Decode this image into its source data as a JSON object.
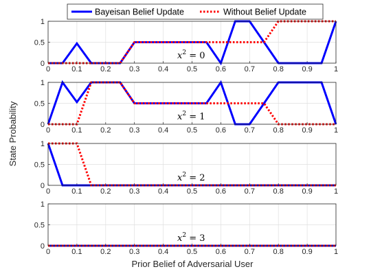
{
  "chart_data": [
    {
      "type": "line",
      "annotation": {
        "var": "x",
        "sup": "2",
        "rest": " = 0"
      },
      "xlim": [
        0,
        1
      ],
      "ylim": [
        0,
        1
      ],
      "xticks": [
        "0",
        "0.1",
        "0.2",
        "0.3",
        "0.4",
        "0.5",
        "0.6",
        "0.7",
        "0.8",
        "0.9",
        "1"
      ],
      "yticks": [
        "0",
        "0.5",
        "1"
      ],
      "series": [
        {
          "name": "Bayeisan Belief Update",
          "color": "#0000ff",
          "style": "solid",
          "x": [
            0,
            0.05,
            0.1,
            0.15,
            0.2,
            0.25,
            0.3,
            0.35,
            0.4,
            0.45,
            0.5,
            0.55,
            0.6,
            0.65,
            0.7,
            0.75,
            0.8,
            0.85,
            0.9,
            0.95,
            1
          ],
          "y": [
            0,
            0,
            0.47,
            0,
            0,
            0,
            0.5,
            0.5,
            0.5,
            0.5,
            0.5,
            0.5,
            0,
            1,
            1,
            0.5,
            0,
            0,
            0,
            0,
            1
          ]
        },
        {
          "name": "Without Belief Update",
          "color": "#ff0000",
          "style": "dotted",
          "x": [
            0,
            0.05,
            0.1,
            0.15,
            0.2,
            0.25,
            0.3,
            0.35,
            0.4,
            0.45,
            0.5,
            0.55,
            0.6,
            0.65,
            0.7,
            0.75,
            0.8,
            0.85,
            0.9,
            0.95,
            1
          ],
          "y": [
            0,
            0,
            0,
            0,
            0,
            0,
            0.5,
            0.5,
            0.5,
            0.5,
            0.5,
            0.5,
            0.5,
            0.5,
            0.5,
            0.5,
            1,
            1,
            1,
            1,
            1
          ]
        }
      ]
    },
    {
      "type": "line",
      "annotation": {
        "var": "x",
        "sup": "2",
        "rest": " = 1"
      },
      "xlim": [
        0,
        1
      ],
      "ylim": [
        0,
        1
      ],
      "xticks": [
        "0",
        "0.1",
        "0.2",
        "0.3",
        "0.4",
        "0.5",
        "0.6",
        "0.7",
        "0.8",
        "0.9",
        "1"
      ],
      "yticks": [
        "0",
        "0.5",
        "1"
      ],
      "series": [
        {
          "name": "Bayeisan Belief Update",
          "color": "#0000ff",
          "style": "solid",
          "x": [
            0,
            0.05,
            0.1,
            0.15,
            0.2,
            0.25,
            0.3,
            0.35,
            0.4,
            0.45,
            0.5,
            0.55,
            0.6,
            0.65,
            0.7,
            0.75,
            0.8,
            0.85,
            0.9,
            0.95,
            1
          ],
          "y": [
            0,
            1,
            0.53,
            1,
            1,
            1,
            0.5,
            0.5,
            0.5,
            0.5,
            0.5,
            0.5,
            1,
            0,
            0,
            0.5,
            1,
            1,
            1,
            1,
            0
          ]
        },
        {
          "name": "Without Belief Update",
          "color": "#ff0000",
          "style": "dotted",
          "x": [
            0,
            0.05,
            0.1,
            0.15,
            0.2,
            0.25,
            0.3,
            0.35,
            0.4,
            0.45,
            0.5,
            0.55,
            0.6,
            0.65,
            0.7,
            0.75,
            0.8,
            0.85,
            0.9,
            0.95,
            1
          ],
          "y": [
            0,
            0,
            0,
            1,
            1,
            1,
            0.5,
            0.5,
            0.5,
            0.5,
            0.5,
            0.5,
            0.5,
            0.5,
            0.5,
            0.5,
            0,
            0,
            0,
            0,
            0
          ]
        }
      ]
    },
    {
      "type": "line",
      "annotation": {
        "var": "x",
        "sup": "2",
        "rest": " = 2"
      },
      "xlim": [
        0,
        1
      ],
      "ylim": [
        0,
        1
      ],
      "xticks": [
        "0",
        "0.1",
        "0.2",
        "0.3",
        "0.4",
        "0.5",
        "0.6",
        "0.7",
        "0.8",
        "0.9",
        "1"
      ],
      "yticks": [
        "0",
        "0.5",
        "1"
      ],
      "series": [
        {
          "name": "Bayeisan Belief Update",
          "color": "#0000ff",
          "style": "solid",
          "x": [
            0,
            0.05,
            0.1,
            0.15,
            0.2,
            0.25,
            0.3,
            0.35,
            0.4,
            0.45,
            0.5,
            0.55,
            0.6,
            0.65,
            0.7,
            0.75,
            0.8,
            0.85,
            0.9,
            0.95,
            1
          ],
          "y": [
            1,
            0,
            0,
            0,
            0,
            0,
            0,
            0,
            0,
            0,
            0,
            0,
            0,
            0,
            0,
            0,
            0,
            0,
            0,
            0,
            0
          ]
        },
        {
          "name": "Without Belief Update",
          "color": "#ff0000",
          "style": "dotted",
          "x": [
            0,
            0.05,
            0.1,
            0.15,
            0.2,
            0.25,
            0.3,
            0.35,
            0.4,
            0.45,
            0.5,
            0.55,
            0.6,
            0.65,
            0.7,
            0.75,
            0.8,
            0.85,
            0.9,
            0.95,
            1
          ],
          "y": [
            1,
            1,
            1,
            0,
            0,
            0,
            0,
            0,
            0,
            0,
            0,
            0,
            0,
            0,
            0,
            0,
            0,
            0,
            0,
            0,
            0
          ]
        }
      ]
    },
    {
      "type": "line",
      "annotation": {
        "var": "x",
        "sup": "2",
        "rest": " = 3"
      },
      "xlim": [
        0,
        1
      ],
      "ylim": [
        0,
        1
      ],
      "xticks": [
        "0",
        "0.1",
        "0.2",
        "0.3",
        "0.4",
        "0.5",
        "0.6",
        "0.7",
        "0.8",
        "0.9",
        "1"
      ],
      "yticks": [
        "0",
        "0.5",
        "1"
      ],
      "series": [
        {
          "name": "Bayeisan Belief Update",
          "color": "#0000ff",
          "style": "solid",
          "x": [
            0,
            0.05,
            0.1,
            0.15,
            0.2,
            0.25,
            0.3,
            0.35,
            0.4,
            0.45,
            0.5,
            0.55,
            0.6,
            0.65,
            0.7,
            0.75,
            0.8,
            0.85,
            0.9,
            0.95,
            1
          ],
          "y": [
            0,
            0,
            0,
            0,
            0,
            0,
            0,
            0,
            0,
            0,
            0,
            0,
            0,
            0,
            0,
            0,
            0,
            0,
            0,
            0,
            0
          ]
        },
        {
          "name": "Without Belief Update",
          "color": "#ff0000",
          "style": "dotted",
          "x": [
            0,
            0.05,
            0.1,
            0.15,
            0.2,
            0.25,
            0.3,
            0.35,
            0.4,
            0.45,
            0.5,
            0.55,
            0.6,
            0.65,
            0.7,
            0.75,
            0.8,
            0.85,
            0.9,
            0.95,
            1
          ],
          "y": [
            0,
            0,
            0,
            0,
            0,
            0,
            0,
            0,
            0,
            0,
            0,
            0,
            0,
            0,
            0,
            0,
            0,
            0,
            0,
            0,
            0
          ]
        }
      ]
    }
  ],
  "legend": {
    "placement": "top",
    "entries": [
      {
        "label": "Bayeisan Belief Update",
        "color": "#0000ff",
        "style": "solid"
      },
      {
        "label": "Without Belief Update",
        "color": "#ff0000",
        "style": "dotted"
      }
    ]
  },
  "xlabel": "Prior Belief of Adversarial User",
  "ylabel": "State Probability",
  "grid": true
}
